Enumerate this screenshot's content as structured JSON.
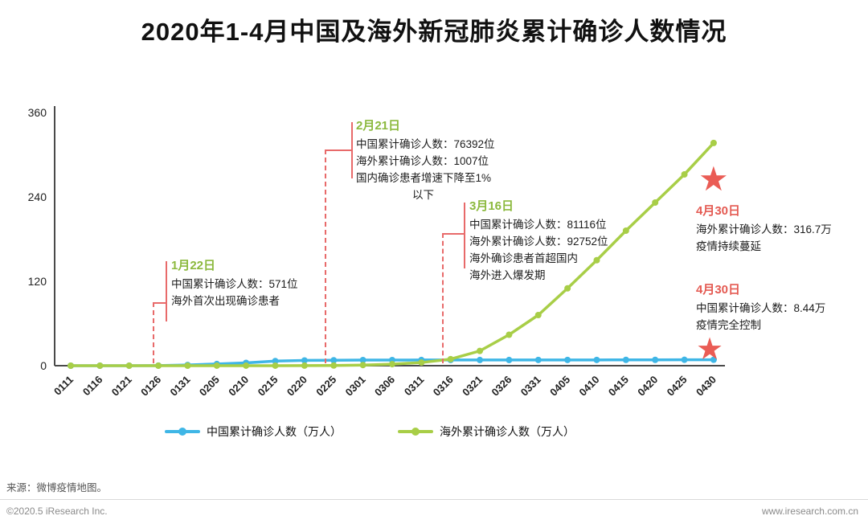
{
  "title": "2020年1-4月中国及海外新冠肺炎累计确诊人数情况",
  "chart_data": {
    "type": "line",
    "title": "2020年1-4月中国及海外新冠肺炎累计确诊人数情况",
    "unit": "万人",
    "categories": [
      "0111",
      "0116",
      "0121",
      "0126",
      "0131",
      "0205",
      "0210",
      "0215",
      "0220",
      "0225",
      "0301",
      "0306",
      "0311",
      "0316",
      "0321",
      "0326",
      "0331",
      "0405",
      "0410",
      "0415",
      "0420",
      "0425",
      "0430"
    ],
    "series": [
      {
        "name": "中国累计确诊人数（万人）",
        "color": "#3FB6E6",
        "values": [
          0,
          0,
          0.03,
          0.2,
          1,
          2.4,
          4,
          6.6,
          7.5,
          7.7,
          8,
          8,
          8.1,
          8.1,
          8.1,
          8.1,
          8.2,
          8.2,
          8.2,
          8.3,
          8.3,
          8.4,
          8.44
        ]
      },
      {
        "name": "海外累计确诊人数（万人）",
        "color": "#A8CE47",
        "values": [
          0,
          0,
          0,
          0,
          0.01,
          0.02,
          0.03,
          0.06,
          0.1,
          0.3,
          0.9,
          2.2,
          4.5,
          9.3,
          21,
          44,
          72,
          110,
          150,
          192,
          232,
          272,
          316.7
        ]
      }
    ],
    "ylim": [
      0,
      360
    ],
    "yticks": [
      0,
      120,
      240,
      360
    ],
    "grid": false,
    "legend_position": "bottom"
  },
  "annotations": [
    {
      "date": "1月22日",
      "lines": [
        "中国累计确诊人数：571位",
        "海外首次出现确诊患者"
      ]
    },
    {
      "date": "2月21日",
      "lines": [
        "中国累计确诊人数：76392位",
        "海外累计确诊人数：1007位",
        "国内确诊患者增速下降至1%",
        "以下"
      ]
    },
    {
      "date": "3月16日",
      "lines": [
        "中国累计确诊人数：81116位",
        "海外累计确诊人数：92752位",
        "海外确诊患者首超国内",
        "海外进入爆发期"
      ]
    },
    {
      "date": "4月30日",
      "lines": [
        "海外累计确诊人数：316.7万",
        "疫情持续蔓延"
      ]
    },
    {
      "date": "4月30日",
      "lines": [
        "中国累计确诊人数：8.44万",
        "疫情完全控制"
      ]
    }
  ],
  "icons": {
    "star": "★"
  },
  "colors": {
    "china_blue": "#3FB6E6",
    "overseas_green": "#A8CE47",
    "annotation_green": "#8CB93E",
    "annotation_red": "#E45A52",
    "dashed_line": "#E86A6A",
    "star_red": "#EA5C55"
  },
  "footer": {
    "source": "来源：微博疫情地图。",
    "copyright": "©2020.5 iResearch Inc.",
    "website": "www.iresearch.com.cn"
  }
}
